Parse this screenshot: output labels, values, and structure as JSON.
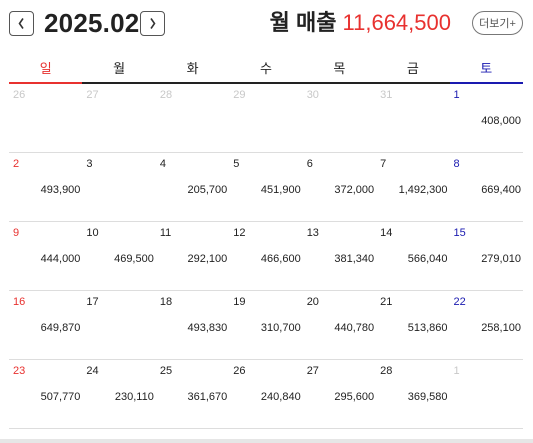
{
  "header": {
    "month": "2025.02",
    "sales_label": "월 매출",
    "sales_value": "11,664,500",
    "more_label": "더보기+",
    "prev_icon": "chevron-left-icon",
    "next_icon": "chevron-right-icon"
  },
  "weekdays": [
    "일",
    "월",
    "화",
    "수",
    "목",
    "금",
    "토"
  ],
  "colors": {
    "sunday": "#e8312f",
    "saturday": "#1a1ab0",
    "sales_value": "#e8312f",
    "other_month": "#c8c8c8"
  },
  "weeks": [
    [
      {
        "day": "26",
        "amount": "",
        "other": true
      },
      {
        "day": "27",
        "amount": "",
        "other": true
      },
      {
        "day": "28",
        "amount": "",
        "other": true
      },
      {
        "day": "29",
        "amount": "",
        "other": true
      },
      {
        "day": "30",
        "amount": "",
        "other": true
      },
      {
        "day": "31",
        "amount": "",
        "other": true
      },
      {
        "day": "1",
        "amount": "408,000",
        "other": false
      }
    ],
    [
      {
        "day": "2",
        "amount": "493,900",
        "other": false
      },
      {
        "day": "3",
        "amount": "",
        "other": false
      },
      {
        "day": "4",
        "amount": "205,700",
        "other": false
      },
      {
        "day": "5",
        "amount": "451,900",
        "other": false
      },
      {
        "day": "6",
        "amount": "372,000",
        "other": false
      },
      {
        "day": "7",
        "amount": "1,492,300",
        "other": false
      },
      {
        "day": "8",
        "amount": "669,400",
        "other": false
      }
    ],
    [
      {
        "day": "9",
        "amount": "444,000",
        "other": false
      },
      {
        "day": "10",
        "amount": "469,500",
        "other": false
      },
      {
        "day": "11",
        "amount": "292,100",
        "other": false
      },
      {
        "day": "12",
        "amount": "466,600",
        "other": false
      },
      {
        "day": "13",
        "amount": "381,340",
        "other": false
      },
      {
        "day": "14",
        "amount": "566,040",
        "other": false
      },
      {
        "day": "15",
        "amount": "279,010",
        "other": false
      }
    ],
    [
      {
        "day": "16",
        "amount": "649,870",
        "other": false
      },
      {
        "day": "17",
        "amount": "",
        "other": false
      },
      {
        "day": "18",
        "amount": "493,830",
        "other": false
      },
      {
        "day": "19",
        "amount": "310,700",
        "other": false
      },
      {
        "day": "20",
        "amount": "440,780",
        "other": false
      },
      {
        "day": "21",
        "amount": "513,860",
        "other": false
      },
      {
        "day": "22",
        "amount": "258,100",
        "other": false
      }
    ],
    [
      {
        "day": "23",
        "amount": "507,770",
        "other": false
      },
      {
        "day": "24",
        "amount": "230,110",
        "other": false
      },
      {
        "day": "25",
        "amount": "361,670",
        "other": false
      },
      {
        "day": "26",
        "amount": "240,840",
        "other": false
      },
      {
        "day": "27",
        "amount": "295,600",
        "other": false
      },
      {
        "day": "28",
        "amount": "369,580",
        "other": false
      },
      {
        "day": "1",
        "amount": "",
        "other": true
      }
    ]
  ]
}
